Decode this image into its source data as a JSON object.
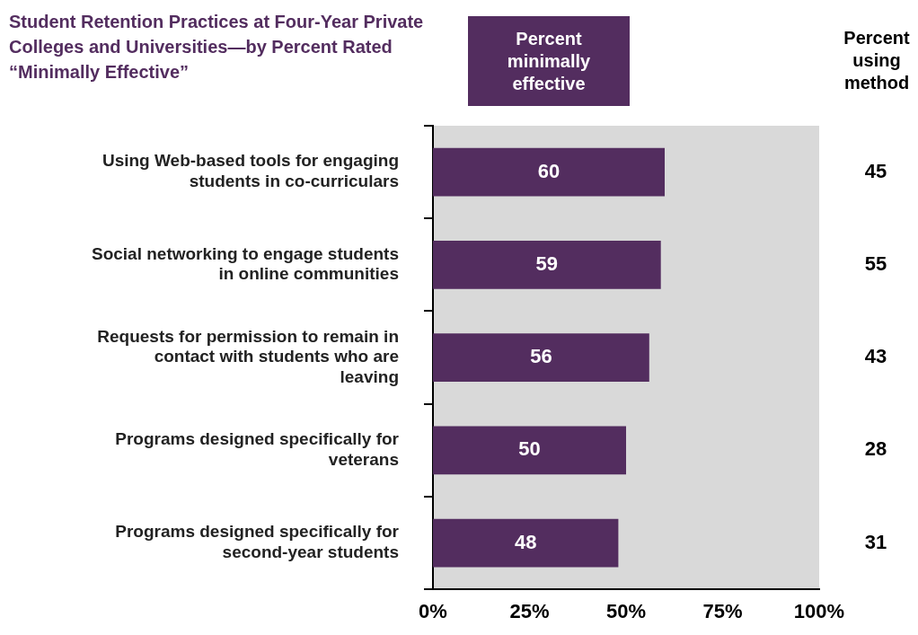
{
  "chart_data": {
    "type": "bar",
    "orientation": "horizontal",
    "title": "Student Retention Practices at Four-Year Private Colleges and Universities—by Percent Rated “Minimally Effective”",
    "categories": [
      "Using Web-based tools for engaging students in co-curriculars",
      "Social networking to engage students in online communities",
      "Requests for permission to remain in contact with students who are leaving",
      "Programs designed specifically for veterans",
      "Programs designed specifically for second-year students"
    ],
    "series": [
      {
        "name": "Percent minimally effective",
        "color": "#532d5f",
        "values": [
          60,
          59,
          56,
          50,
          48
        ]
      }
    ],
    "xlim": [
      0,
      100
    ],
    "xticks": [
      {
        "value": 0,
        "label": "0%"
      },
      {
        "value": 25,
        "label": "25%"
      },
      {
        "value": 50,
        "label": "50%"
      },
      {
        "value": 75,
        "label": "75%"
      },
      {
        "value": 100,
        "label": "100%"
      }
    ],
    "data_labels": true,
    "grid": false,
    "legend": "top",
    "annotations": [
      "Percent using method",
      "45",
      "55",
      "43",
      "28",
      "31"
    ]
  }
}
